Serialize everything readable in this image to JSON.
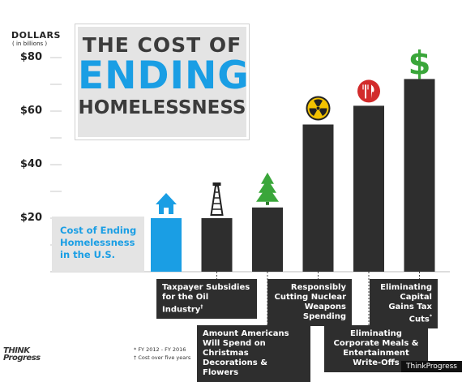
{
  "title": {
    "line1": "THE COST OF",
    "line2": "ENDING",
    "line3": "HOMELESSNESS"
  },
  "axis": {
    "ylabel": "DOLLARS",
    "ylabel_sub": "( in billions )",
    "ticks": [
      "$80",
      "$60",
      "$40",
      "$20"
    ]
  },
  "callout": "Cost of Ending Homelessness in the U.S.",
  "labels": {
    "oil": "Taxpayer Subsidies for the Oil Industry",
    "oil_mark": "†",
    "christmas": "Amount Americans Will Spend on Christmas Decorations & Flowers",
    "nuclear": "Responsibly Cutting Nuclear Weapons Spending",
    "meals": "Eliminating Corporate Meals & Entertainment Write-Offs",
    "taxcuts": "Eliminating Capital Gains Tax Cuts",
    "taxcuts_mark": "*"
  },
  "footnotes": {
    "f1": "* FY 2012 - FY 2016",
    "f2": "† Cost over five years"
  },
  "logo": {
    "line1": "THINK",
    "line2": "Progress"
  },
  "credit": "ThinkProgress",
  "colors": {
    "highlight": "#1a9ee4",
    "bar": "#2e2e2e",
    "grid": "#c8c8c8"
  },
  "chart_data": {
    "type": "bar",
    "ylim": [
      0,
      80
    ],
    "y_ticks": [
      20,
      40,
      60,
      80
    ],
    "categories": [
      "Cost of Ending Homelessness in the U.S.",
      "Taxpayer Subsidies for the Oil Industry",
      "Amount Americans Will Spend on Christmas Decorations & Flowers",
      "Responsibly Cutting Nuclear Weapons Spending",
      "Eliminating Corporate Meals & Entertainment Write-Offs",
      "Eliminating Capital Gains Tax Cuts"
    ],
    "values": [
      20,
      20,
      24,
      55,
      62,
      72
    ],
    "icons": [
      "house-icon",
      "oil-derrick-icon",
      "christmas-tree-icon",
      "radiation-icon",
      "fork-knife-icon",
      "dollar-sign-icon"
    ],
    "bar_colors": [
      "#1a9ee4",
      "#2e2e2e",
      "#2e2e2e",
      "#2e2e2e",
      "#2e2e2e",
      "#2e2e2e"
    ]
  }
}
